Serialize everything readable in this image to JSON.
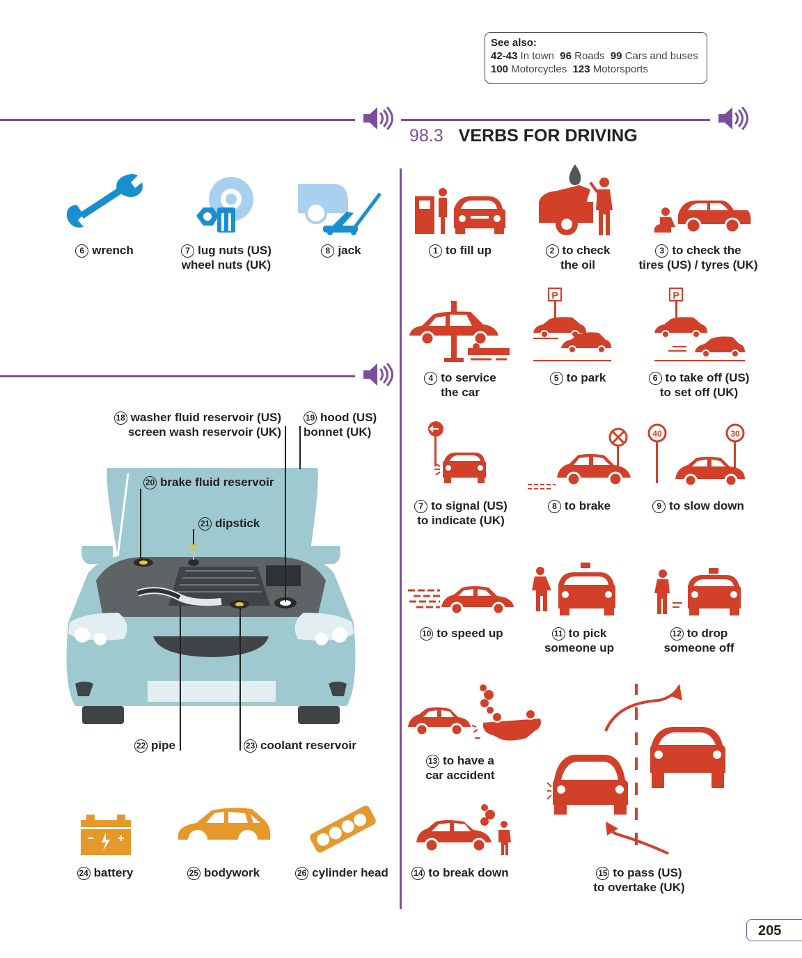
{
  "see_also": {
    "heading": "See also:",
    "refs": [
      {
        "num": "42-43",
        "text": "In town"
      },
      {
        "num": "96",
        "text": "Roads"
      },
      {
        "num": "99",
        "text": "Cars and buses"
      },
      {
        "num": "100",
        "text": "Motorcycles"
      },
      {
        "num": "123",
        "text": "Motorsports"
      }
    ]
  },
  "section": {
    "number": "98.3",
    "title": "VERBS FOR DRIVING"
  },
  "tools": [
    {
      "num": "6",
      "label": "wrench",
      "icon": "wrench-icon"
    },
    {
      "num": "7",
      "label": "lug nuts (US)",
      "label2": "wheel nuts (UK)",
      "icon": "lug-nuts-icon"
    },
    {
      "num": "8",
      "label": "jack",
      "icon": "jack-icon"
    }
  ],
  "engine_parts": [
    {
      "num": "18",
      "label": "washer fluid reservoir (US)",
      "label2": "screen wash reservoir (UK)"
    },
    {
      "num": "19",
      "label": "hood (US)",
      "label2": "bonnet (UK)"
    },
    {
      "num": "20",
      "label": "brake fluid reservoir"
    },
    {
      "num": "21",
      "label": "dipstick"
    },
    {
      "num": "22",
      "label": "pipe"
    },
    {
      "num": "23",
      "label": "coolant reservoir"
    }
  ],
  "parts": [
    {
      "num": "24",
      "label": "battery",
      "icon": "battery-icon"
    },
    {
      "num": "25",
      "label": "bodywork",
      "icon": "bodywork-icon"
    },
    {
      "num": "26",
      "label": "cylinder head",
      "icon": "cylinder-head-icon"
    }
  ],
  "verbs": [
    {
      "num": "1",
      "label": "to fill up"
    },
    {
      "num": "2",
      "label": "to check",
      "label2": "the oil"
    },
    {
      "num": "3",
      "label": "to check the",
      "label2": "tires (US) / tyres (UK)"
    },
    {
      "num": "4",
      "label": "to service",
      "label2": "the car"
    },
    {
      "num": "5",
      "label": "to park"
    },
    {
      "num": "6",
      "label": "to take off (US)",
      "label2": "to set off (UK)"
    },
    {
      "num": "7",
      "label": "to signal (US)",
      "label2": "to indicate (UK)"
    },
    {
      "num": "8",
      "label": "to brake"
    },
    {
      "num": "9",
      "label": "to slow down"
    },
    {
      "num": "10",
      "label": "to speed up"
    },
    {
      "num": "11",
      "label": "to pick",
      "label2": "someone up"
    },
    {
      "num": "12",
      "label": "to drop",
      "label2": "someone off"
    },
    {
      "num": "13",
      "label": "to have a",
      "label2": "car accident"
    },
    {
      "num": "14",
      "label": "to break down"
    },
    {
      "num": "15",
      "label": "to pass (US)",
      "label2": "to overtake (UK)"
    }
  ],
  "signs": {
    "parking": "P",
    "speed_a": "40",
    "speed_b": "30"
  },
  "page_number": "205",
  "colors": {
    "accent": "#7a4f9a",
    "verb_red": "#d2402a",
    "tool_blue": "#1a8fd0",
    "parts_orange": "#e6992a",
    "car_teal": "#9fc9d0"
  }
}
